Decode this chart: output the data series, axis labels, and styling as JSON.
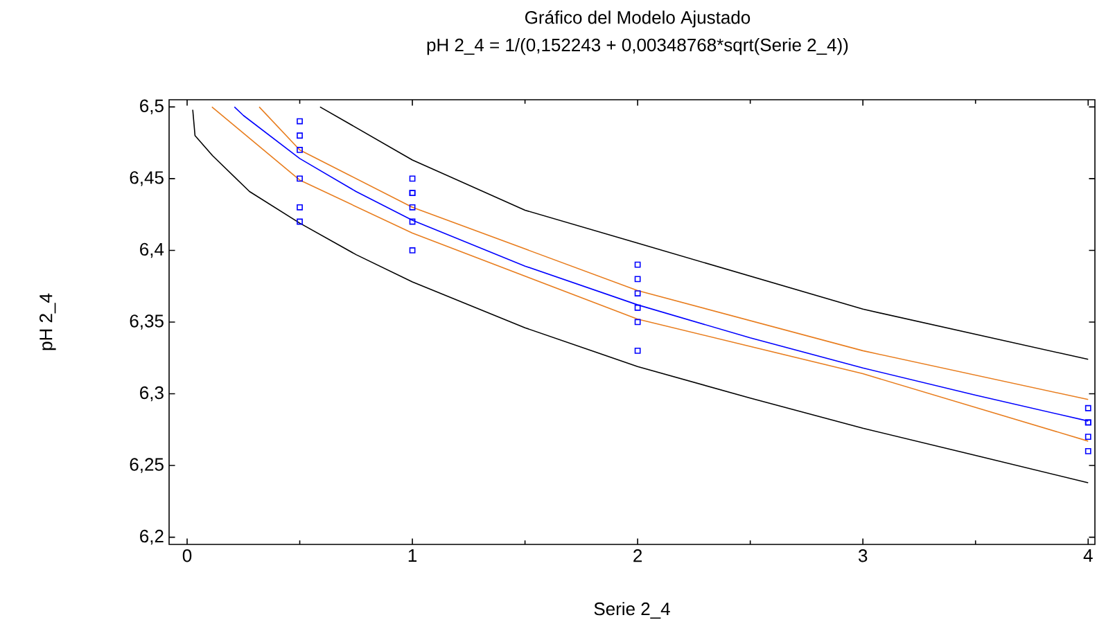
{
  "chart_data": {
    "type": "scatter",
    "title": "Gráfico del Modelo Ajustado",
    "subtitle": "pH 2_4 = 1/(0,152243 + 0,00348768*sqrt(Serie 2_4))",
    "xlabel": "Serie 2_4",
    "ylabel": "pH 2_4",
    "xlim": [
      -0.08,
      4.03
    ],
    "ylim": [
      6.195,
      6.505
    ],
    "xticks": [
      0,
      1,
      2,
      3,
      4
    ],
    "yticks": [
      {
        "value": 6.2,
        "label": "6,2"
      },
      {
        "value": 6.25,
        "label": "6,25"
      },
      {
        "value": 6.3,
        "label": "6,3"
      },
      {
        "value": 6.35,
        "label": "6,35"
      },
      {
        "value": 6.4,
        "label": "6,4"
      },
      {
        "value": 6.45,
        "label": "6,45"
      },
      {
        "value": 6.5,
        "label": "6,5"
      }
    ],
    "grid": false,
    "series": [
      {
        "type": "line",
        "color": "#000000",
        "marker": "none",
        "x": [
          0.59,
          1.0,
          1.5,
          2.0,
          3.0,
          4.0
        ],
        "values": [
          6.5,
          6.463,
          6.428,
          6.405,
          6.359,
          6.324
        ]
      },
      {
        "type": "line",
        "color": "#e87d1e",
        "marker": "none",
        "x": [
          0.32,
          0.5,
          1.0,
          2.0,
          3.0,
          4.0
        ],
        "values": [
          6.5,
          6.47,
          6.43,
          6.372,
          6.33,
          6.296
        ]
      },
      {
        "type": "line",
        "color": "#0000ff",
        "marker": "none",
        "x": [
          0.21,
          0.25,
          0.5,
          0.75,
          1.0,
          1.5,
          2.0,
          2.5,
          3.0,
          3.5,
          4.0
        ],
        "values": [
          6.5,
          6.494,
          6.464,
          6.441,
          6.421,
          6.389,
          6.362,
          6.339,
          6.318,
          6.299,
          6.281
        ]
      },
      {
        "type": "line",
        "color": "#e87d1e",
        "marker": "none",
        "x": [
          0.11,
          0.5,
          1.0,
          2.0,
          3.0,
          4.0
        ],
        "values": [
          6.5,
          6.449,
          6.412,
          6.352,
          6.314,
          6.267
        ]
      },
      {
        "type": "line",
        "color": "#000000",
        "marker": "none",
        "x": [
          0.025,
          0.035,
          0.113,
          0.277,
          0.5,
          0.75,
          1.0,
          1.5,
          2.0,
          2.5,
          3.0,
          3.5,
          4.0
        ],
        "values": [
          6.498,
          6.48,
          6.466,
          6.441,
          6.419,
          6.397,
          6.378,
          6.346,
          6.319,
          6.297,
          6.276,
          6.257,
          6.238
        ]
      },
      {
        "color": "#0000ff",
        "marker": "square",
        "x": [
          0.5,
          0.5,
          0.5,
          0.5,
          0.5,
          0.5,
          1,
          1,
          1,
          1,
          1,
          1,
          2,
          2,
          2,
          2,
          2,
          2,
          4,
          4,
          4,
          4,
          4
        ],
        "values": [
          6.49,
          6.48,
          6.47,
          6.45,
          6.43,
          6.42,
          6.45,
          6.44,
          6.44,
          6.43,
          6.42,
          6.4,
          6.39,
          6.38,
          6.37,
          6.36,
          6.35,
          6.33,
          6.29,
          6.28,
          6.28,
          6.27,
          6.26
        ]
      }
    ]
  }
}
